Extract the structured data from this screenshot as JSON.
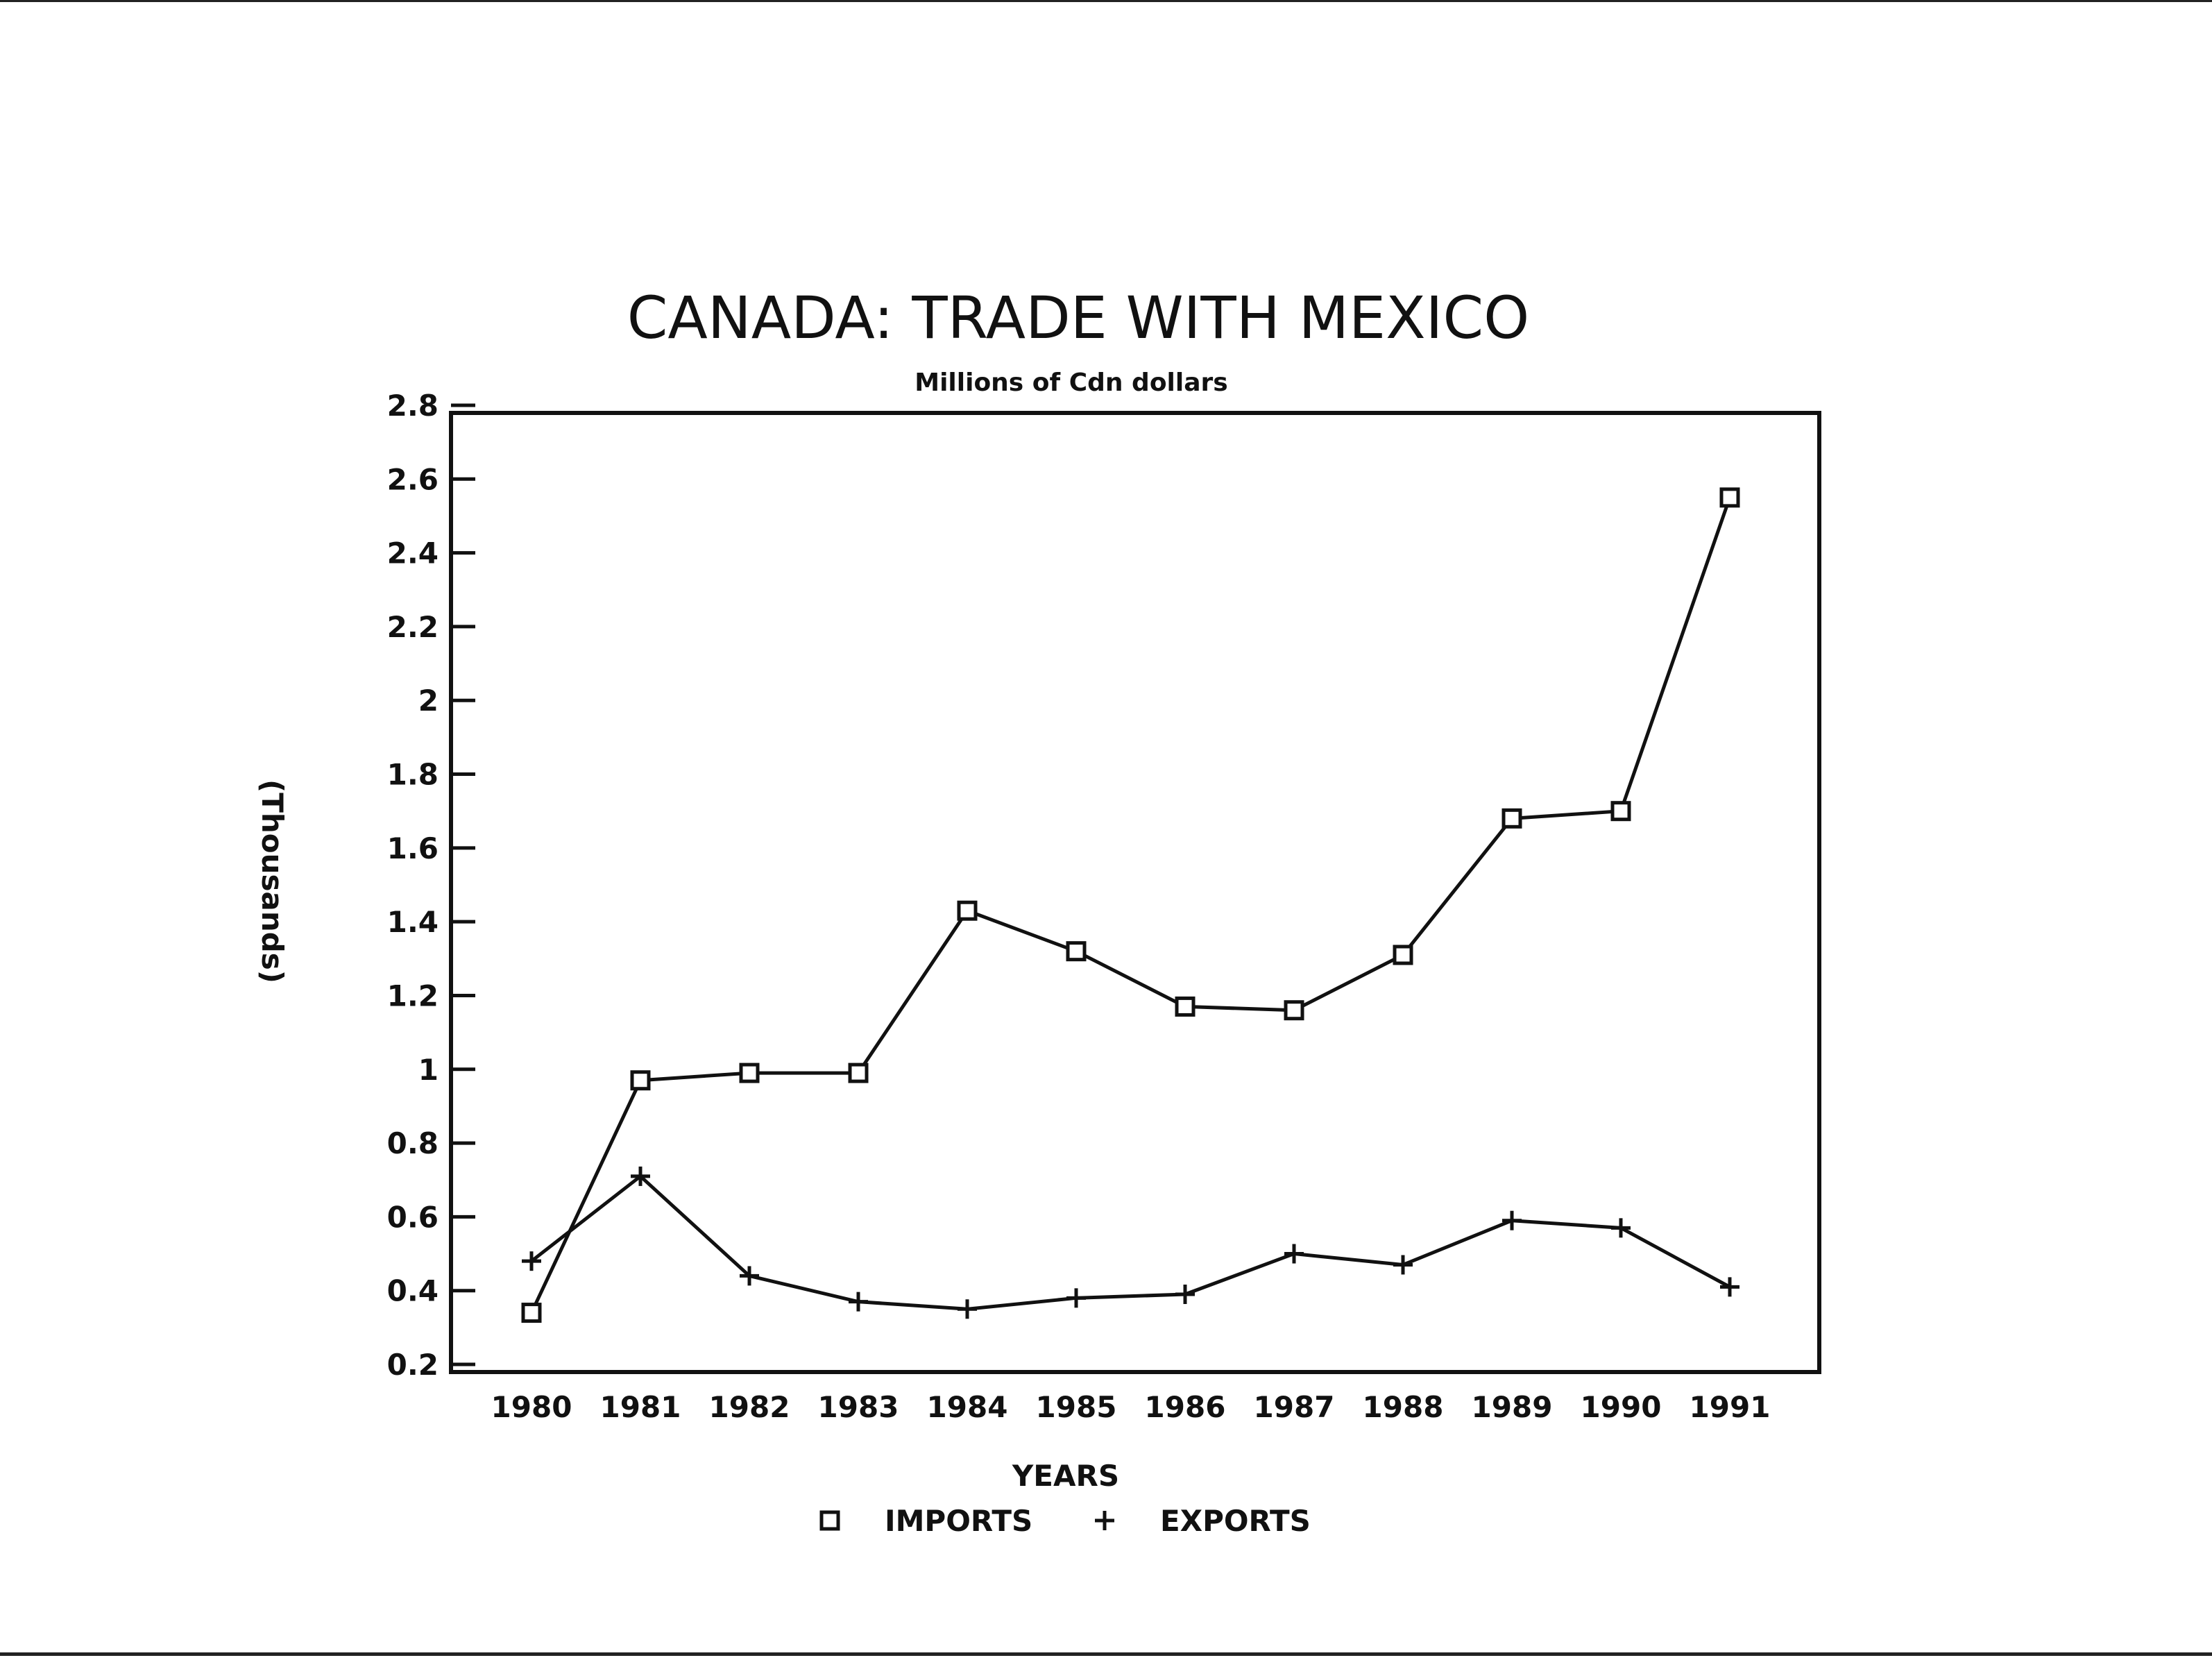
{
  "chart_data": {
    "type": "line",
    "title": "CANADA: TRADE WITH MEXICO",
    "subtitle": "Millions of Cdn dollars",
    "xlabel": "YEARS",
    "ylabel": "(Thousands)",
    "categories": [
      "1980",
      "1981",
      "1982",
      "1983",
      "1984",
      "1985",
      "1986",
      "1987",
      "1988",
      "1989",
      "1990",
      "1991"
    ],
    "yticks": [
      "0.2",
      "0.4",
      "0.6",
      "0.8",
      "1",
      "1.2",
      "1.4",
      "1.6",
      "1.8",
      "2",
      "2.2",
      "2.4",
      "2.6",
      "2.8"
    ],
    "ylim": [
      0.2,
      2.8
    ],
    "grid": false,
    "legend_position": "bottom-center",
    "series": [
      {
        "name": "IMPORTS",
        "marker": "square",
        "values": [
          0.34,
          0.97,
          0.99,
          0.99,
          1.43,
          1.32,
          1.17,
          1.16,
          1.31,
          1.68,
          1.7,
          2.55
        ]
      },
      {
        "name": "EXPORTS",
        "marker": "plus",
        "values": [
          0.48,
          0.71,
          0.44,
          0.37,
          0.35,
          0.38,
          0.39,
          0.5,
          0.47,
          0.59,
          0.57,
          0.41
        ]
      }
    ],
    "colors": {
      "line": "#111111",
      "background": "#ffffff"
    }
  }
}
